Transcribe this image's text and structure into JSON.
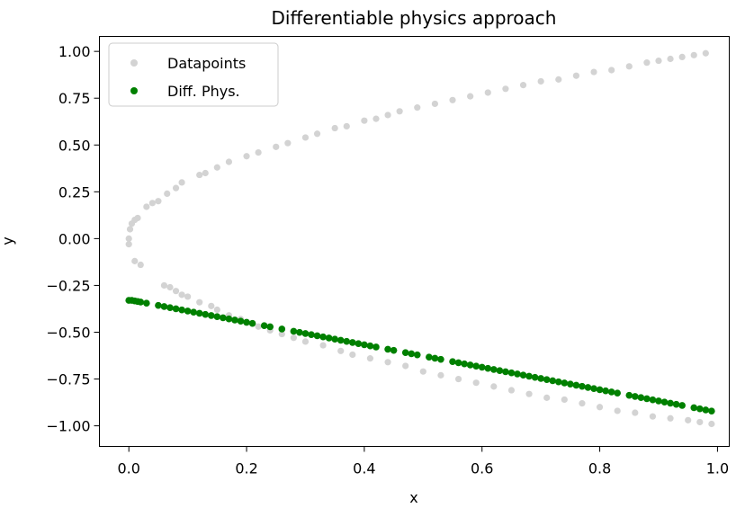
{
  "chart_data": {
    "type": "scatter",
    "title": "Differentiable physics approach",
    "xlabel": "x",
    "ylabel": "y",
    "xlim": [
      -0.05,
      1.02
    ],
    "ylim": [
      -1.11,
      1.08
    ],
    "xticks": [
      0.0,
      0.2,
      0.4,
      0.6,
      0.8,
      1.0
    ],
    "xtick_labels": [
      "0.0",
      "0.2",
      "0.4",
      "0.6",
      "0.8",
      "1.0"
    ],
    "yticks": [
      1.0,
      0.75,
      0.5,
      0.25,
      0.0,
      -0.25,
      -0.5,
      -0.75,
      -1.0
    ],
    "ytick_labels": [
      "1.00",
      "0.75",
      "0.50",
      "0.25",
      "0.00",
      "−0.25",
      "−0.50",
      "−0.75",
      "−1.00"
    ],
    "grid": false,
    "legend_position": "upper-left",
    "series": [
      {
        "name": "Datapoints",
        "color": "#d3d3d3",
        "points": [
          [
            0.0,
            0.0
          ],
          [
            0.0,
            -0.03
          ],
          [
            0.002,
            0.05
          ],
          [
            0.005,
            0.08
          ],
          [
            0.01,
            0.1
          ],
          [
            0.015,
            0.11
          ],
          [
            0.01,
            -0.12
          ],
          [
            0.02,
            -0.14
          ],
          [
            0.03,
            0.17
          ],
          [
            0.04,
            0.19
          ],
          [
            0.05,
            0.2
          ],
          [
            0.065,
            0.24
          ],
          [
            0.08,
            0.27
          ],
          [
            0.09,
            0.3
          ],
          [
            0.12,
            0.34
          ],
          [
            0.13,
            0.35
          ],
          [
            0.15,
            0.38
          ],
          [
            0.17,
            0.41
          ],
          [
            0.2,
            0.44
          ],
          [
            0.22,
            0.46
          ],
          [
            0.25,
            0.49
          ],
          [
            0.27,
            0.51
          ],
          [
            0.3,
            0.54
          ],
          [
            0.32,
            0.56
          ],
          [
            0.35,
            0.59
          ],
          [
            0.37,
            0.6
          ],
          [
            0.4,
            0.63
          ],
          [
            0.42,
            0.64
          ],
          [
            0.44,
            0.66
          ],
          [
            0.46,
            0.68
          ],
          [
            0.49,
            0.7
          ],
          [
            0.52,
            0.72
          ],
          [
            0.55,
            0.74
          ],
          [
            0.58,
            0.76
          ],
          [
            0.61,
            0.78
          ],
          [
            0.64,
            0.8
          ],
          [
            0.67,
            0.82
          ],
          [
            0.7,
            0.84
          ],
          [
            0.73,
            0.85
          ],
          [
            0.76,
            0.87
          ],
          [
            0.79,
            0.89
          ],
          [
            0.82,
            0.9
          ],
          [
            0.85,
            0.92
          ],
          [
            0.88,
            0.94
          ],
          [
            0.9,
            0.95
          ],
          [
            0.92,
            0.96
          ],
          [
            0.94,
            0.97
          ],
          [
            0.96,
            0.98
          ],
          [
            0.98,
            0.99
          ],
          [
            0.06,
            -0.25
          ],
          [
            0.07,
            -0.26
          ],
          [
            0.08,
            -0.28
          ],
          [
            0.09,
            -0.3
          ],
          [
            0.1,
            -0.31
          ],
          [
            0.12,
            -0.34
          ],
          [
            0.14,
            -0.36
          ],
          [
            0.15,
            -0.38
          ],
          [
            0.17,
            -0.41
          ],
          [
            0.19,
            -0.43
          ],
          [
            0.2,
            -0.45
          ],
          [
            0.22,
            -0.47
          ],
          [
            0.24,
            -0.49
          ],
          [
            0.26,
            -0.51
          ],
          [
            0.28,
            -0.53
          ],
          [
            0.3,
            -0.55
          ],
          [
            0.33,
            -0.57
          ],
          [
            0.36,
            -0.6
          ],
          [
            0.38,
            -0.62
          ],
          [
            0.41,
            -0.64
          ],
          [
            0.44,
            -0.66
          ],
          [
            0.47,
            -0.68
          ],
          [
            0.5,
            -0.71
          ],
          [
            0.53,
            -0.73
          ],
          [
            0.56,
            -0.75
          ],
          [
            0.59,
            -0.77
          ],
          [
            0.62,
            -0.79
          ],
          [
            0.65,
            -0.81
          ],
          [
            0.68,
            -0.83
          ],
          [
            0.71,
            -0.85
          ],
          [
            0.74,
            -0.86
          ],
          [
            0.77,
            -0.88
          ],
          [
            0.8,
            -0.9
          ],
          [
            0.83,
            -0.92
          ],
          [
            0.86,
            -0.93
          ],
          [
            0.89,
            -0.95
          ],
          [
            0.92,
            -0.96
          ],
          [
            0.95,
            -0.97
          ],
          [
            0.97,
            -0.98
          ],
          [
            0.99,
            -0.99
          ]
        ]
      },
      {
        "name": "Diff. Phys.",
        "color": "#008000",
        "points": [
          [
            0.0,
            -0.33
          ],
          [
            0.005,
            -0.33
          ],
          [
            0.01,
            -0.333
          ],
          [
            0.015,
            -0.336
          ],
          [
            0.02,
            -0.339
          ],
          [
            0.03,
            -0.345
          ],
          [
            0.05,
            -0.357
          ],
          [
            0.06,
            -0.363
          ],
          [
            0.07,
            -0.369
          ],
          [
            0.08,
            -0.375
          ],
          [
            0.09,
            -0.381
          ],
          [
            0.1,
            -0.387
          ],
          [
            0.11,
            -0.393
          ],
          [
            0.12,
            -0.399
          ],
          [
            0.13,
            -0.405
          ],
          [
            0.14,
            -0.411
          ],
          [
            0.15,
            -0.417
          ],
          [
            0.16,
            -0.423
          ],
          [
            0.17,
            -0.429
          ],
          [
            0.18,
            -0.435
          ],
          [
            0.19,
            -0.441
          ],
          [
            0.2,
            -0.447
          ],
          [
            0.21,
            -0.453
          ],
          [
            0.23,
            -0.465
          ],
          [
            0.24,
            -0.471
          ],
          [
            0.26,
            -0.483
          ],
          [
            0.28,
            -0.495
          ],
          [
            0.29,
            -0.501
          ],
          [
            0.3,
            -0.507
          ],
          [
            0.31,
            -0.513
          ],
          [
            0.32,
            -0.519
          ],
          [
            0.33,
            -0.525
          ],
          [
            0.34,
            -0.531
          ],
          [
            0.35,
            -0.537
          ],
          [
            0.36,
            -0.543
          ],
          [
            0.37,
            -0.549
          ],
          [
            0.38,
            -0.555
          ],
          [
            0.39,
            -0.561
          ],
          [
            0.4,
            -0.567
          ],
          [
            0.41,
            -0.573
          ],
          [
            0.42,
            -0.579
          ],
          [
            0.44,
            -0.591
          ],
          [
            0.45,
            -0.597
          ],
          [
            0.47,
            -0.609
          ],
          [
            0.48,
            -0.615
          ],
          [
            0.49,
            -0.621
          ],
          [
            0.51,
            -0.633
          ],
          [
            0.52,
            -0.639
          ],
          [
            0.53,
            -0.645
          ],
          [
            0.55,
            -0.657
          ],
          [
            0.56,
            -0.663
          ],
          [
            0.57,
            -0.669
          ],
          [
            0.58,
            -0.675
          ],
          [
            0.59,
            -0.681
          ],
          [
            0.6,
            -0.687
          ],
          [
            0.61,
            -0.693
          ],
          [
            0.62,
            -0.699
          ],
          [
            0.63,
            -0.705
          ],
          [
            0.64,
            -0.711
          ],
          [
            0.65,
            -0.717
          ],
          [
            0.66,
            -0.723
          ],
          [
            0.67,
            -0.729
          ],
          [
            0.68,
            -0.735
          ],
          [
            0.69,
            -0.741
          ],
          [
            0.7,
            -0.747
          ],
          [
            0.71,
            -0.753
          ],
          [
            0.72,
            -0.759
          ],
          [
            0.73,
            -0.765
          ],
          [
            0.74,
            -0.771
          ],
          [
            0.75,
            -0.777
          ],
          [
            0.76,
            -0.783
          ],
          [
            0.77,
            -0.789
          ],
          [
            0.78,
            -0.795
          ],
          [
            0.79,
            -0.801
          ],
          [
            0.8,
            -0.807
          ],
          [
            0.81,
            -0.813
          ],
          [
            0.82,
            -0.819
          ],
          [
            0.83,
            -0.825
          ],
          [
            0.85,
            -0.837
          ],
          [
            0.86,
            -0.843
          ],
          [
            0.87,
            -0.849
          ],
          [
            0.88,
            -0.855
          ],
          [
            0.89,
            -0.861
          ],
          [
            0.9,
            -0.867
          ],
          [
            0.91,
            -0.873
          ],
          [
            0.92,
            -0.879
          ],
          [
            0.93,
            -0.885
          ],
          [
            0.94,
            -0.891
          ],
          [
            0.96,
            -0.903
          ],
          [
            0.97,
            -0.909
          ],
          [
            0.98,
            -0.915
          ],
          [
            0.99,
            -0.921
          ]
        ]
      }
    ]
  }
}
